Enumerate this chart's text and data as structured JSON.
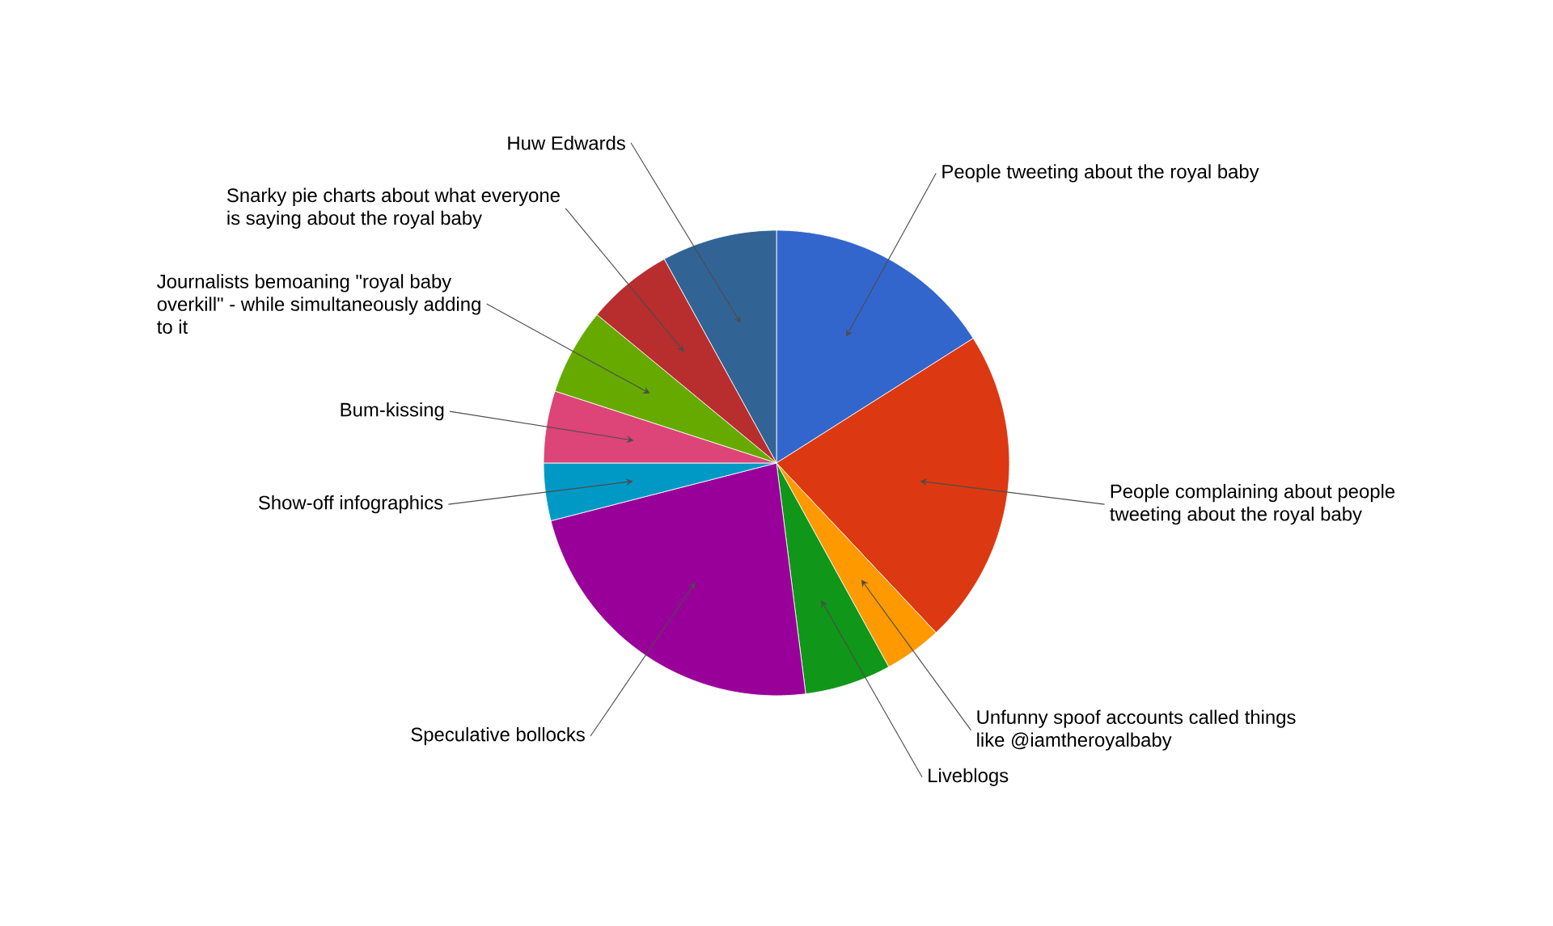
{
  "chart_data": {
    "type": "pie",
    "categories": [
      "People tweeting about the royal baby",
      "People complaining about people tweeting about the royal baby",
      "Unfunny spoof accounts called things like @iamtheroyalbaby",
      "Liveblogs",
      "Speculative bollocks",
      "Show-off infographics",
      "Bum-kissing",
      "Journalists bemoaning \"royal baby overkill\" - while simultaneously adding to it",
      "Snarky pie charts about what everyone is saying about the royal baby",
      "Huw Edwards"
    ],
    "values": [
      16,
      22,
      4,
      6,
      23,
      4,
      5,
      6,
      6,
      8
    ],
    "colors": [
      "#3366cc",
      "#dc3912",
      "#ff9900",
      "#109618",
      "#990099",
      "#0099c6",
      "#dd4477",
      "#66aa00",
      "#b82e2e",
      "#316395"
    ],
    "legend": false
  }
}
